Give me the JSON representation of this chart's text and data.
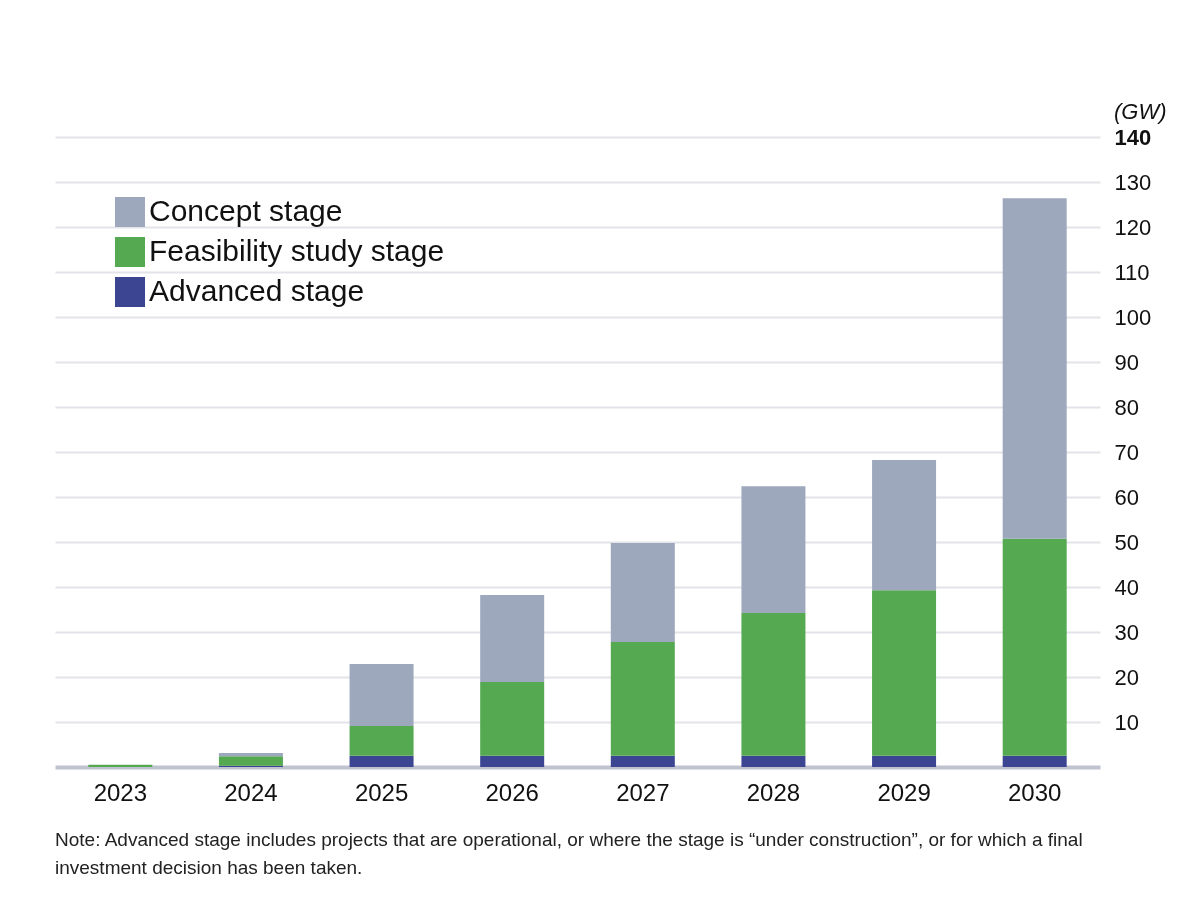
{
  "chart_data": {
    "type": "bar",
    "stacked": true,
    "ylabel": "(GW)",
    "categories": [
      "2023",
      "2024",
      "2025",
      "2026",
      "2027",
      "2028",
      "2029",
      "2030"
    ],
    "series": [
      {
        "name": "Advanced stage",
        "color": "#3b4592",
        "values": [
          0,
          0.3,
          2.5,
          2.5,
          2.5,
          2.5,
          2.5,
          2.5
        ]
      },
      {
        "name": "Feasibility study stage",
        "color": "#55a951",
        "values": [
          0.5,
          2.1,
          6.6,
          16.4,
          25.3,
          31.7,
          36.8,
          48.2
        ]
      },
      {
        "name": "Concept stage",
        "color": "#9ea8bd",
        "values": [
          0,
          0.7,
          13.8,
          19.3,
          22.0,
          28.2,
          28.9,
          75.7
        ]
      }
    ],
    "ylim": [
      0,
      140
    ],
    "yticks": [
      10,
      20,
      30,
      40,
      50,
      60,
      70,
      80,
      90,
      100,
      110,
      120,
      130,
      140
    ],
    "grid": true,
    "legend": "top left",
    "annotations": [
      "Note: Advanced stage includes projects that are operational, or where the stage is “under construction”, or for which a final investment decision has been taken."
    ]
  }
}
